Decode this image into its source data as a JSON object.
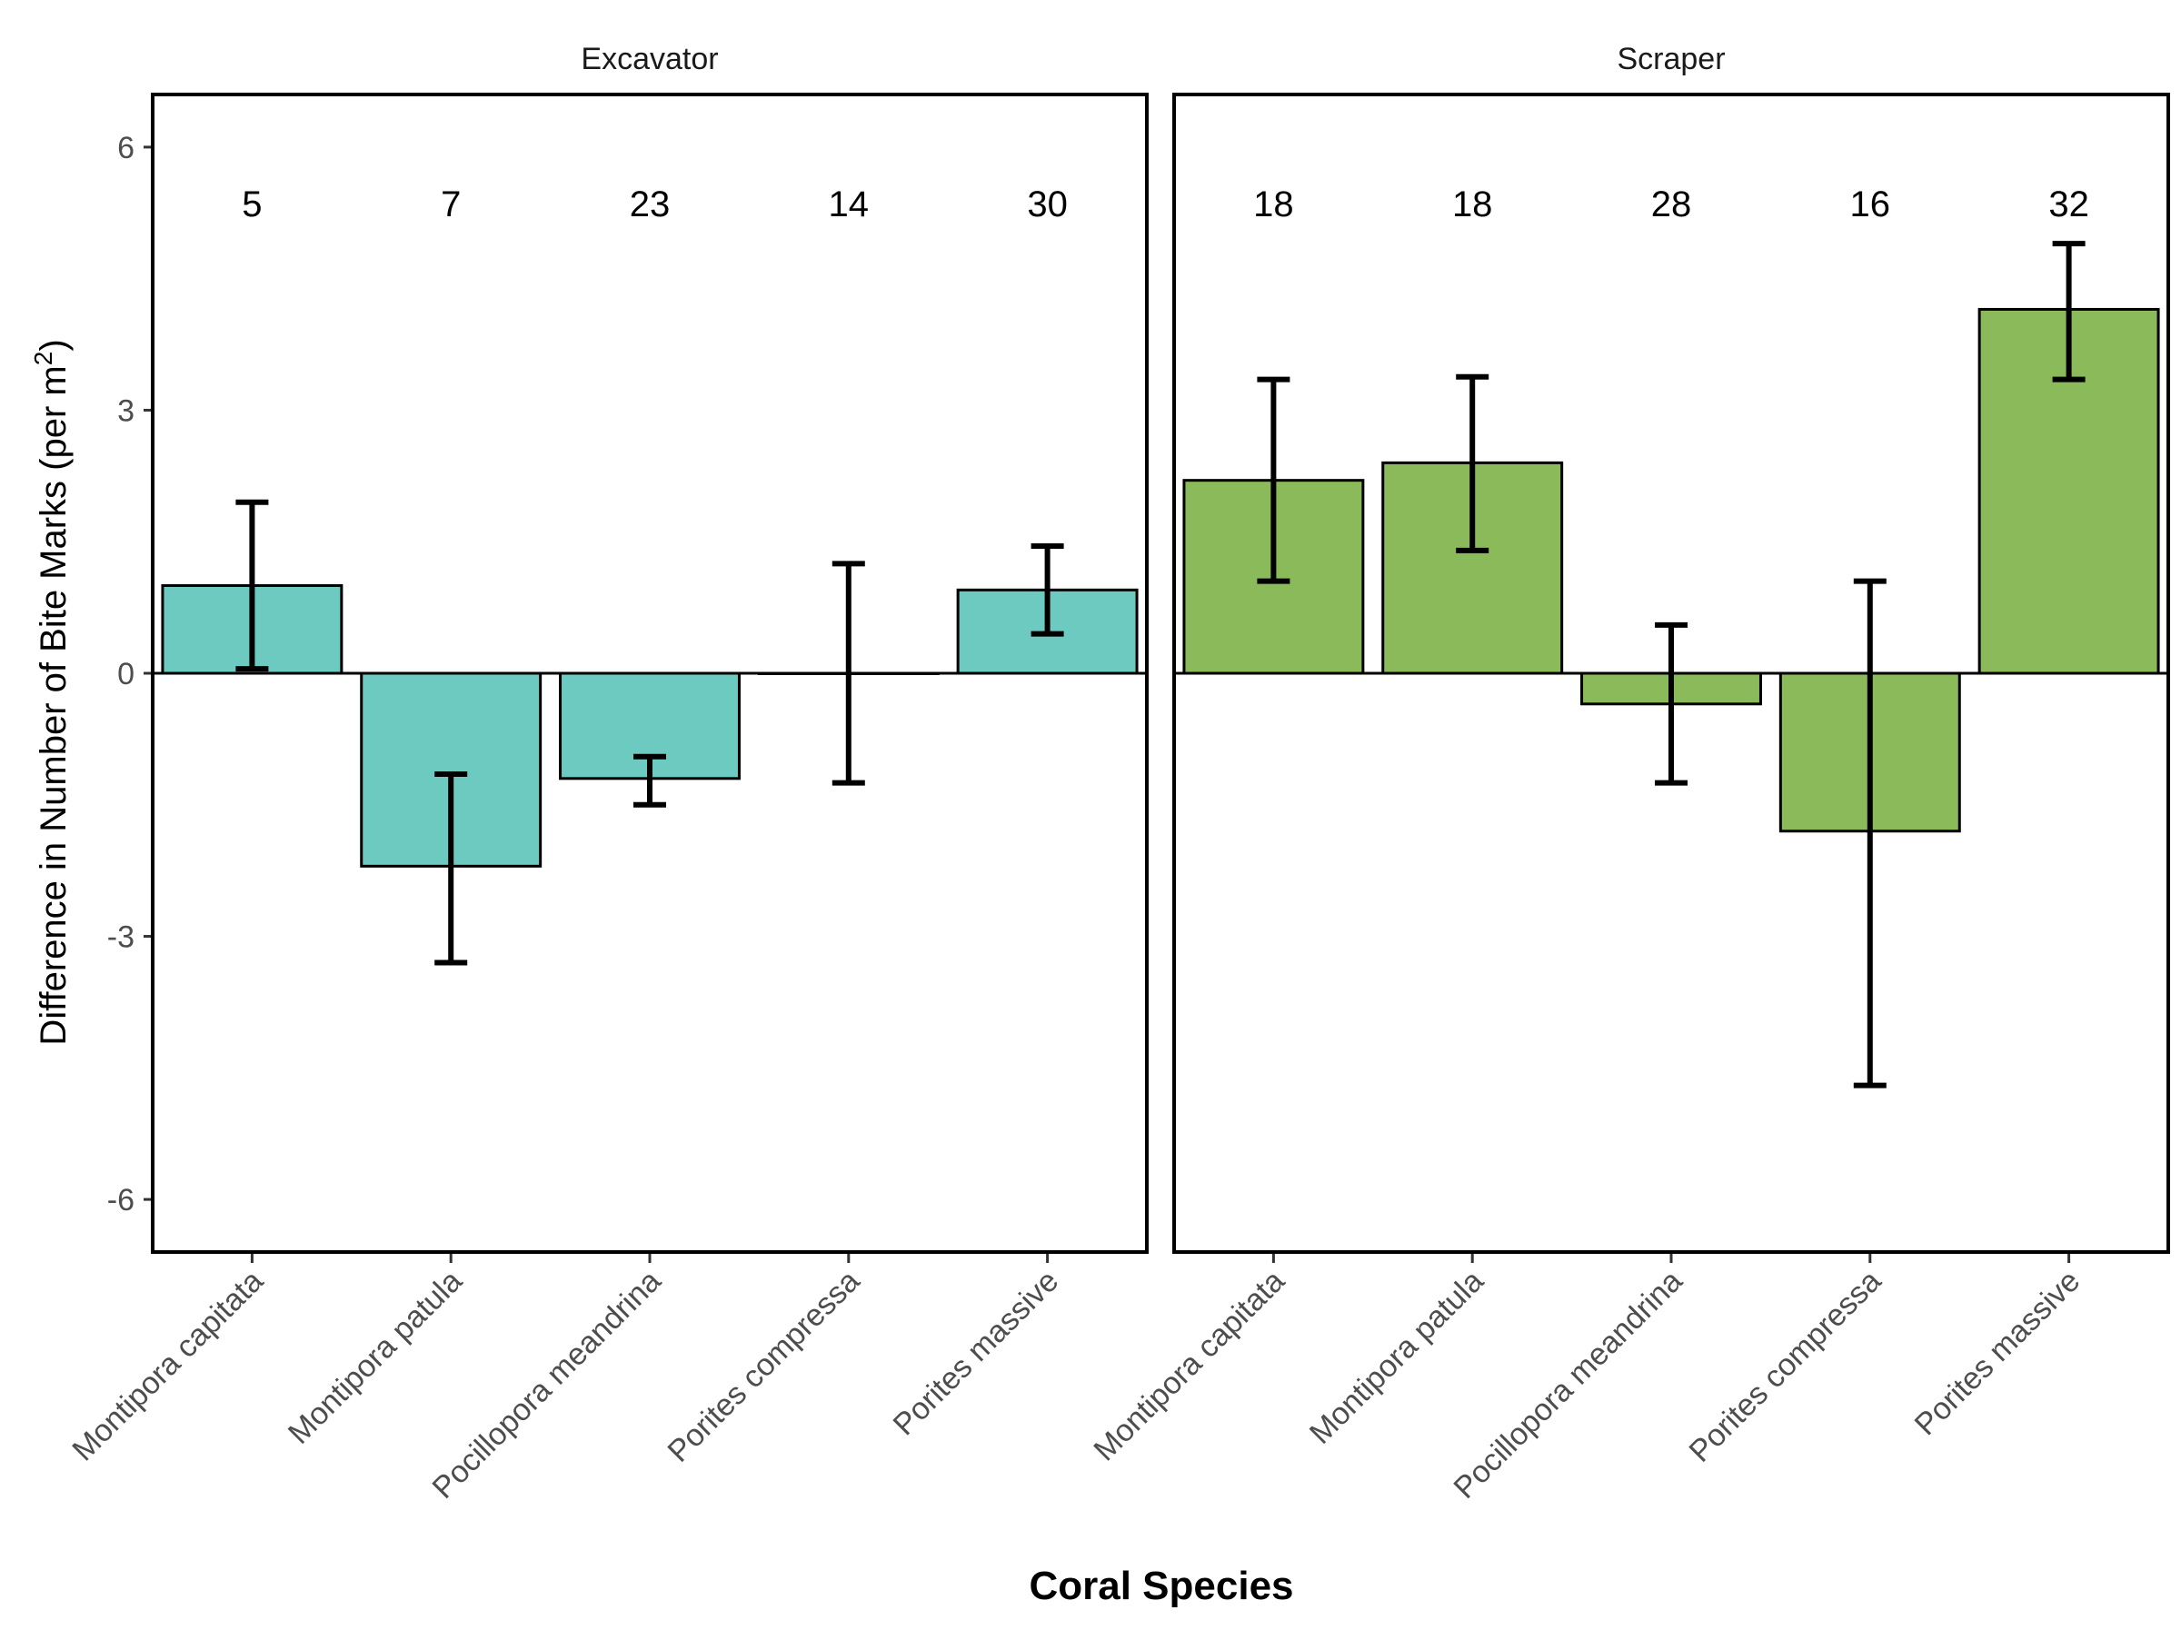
{
  "chart_data": {
    "type": "bar",
    "xlabel": "Coral Species",
    "ylabel_main": "Difference in Number of Bite Marks (per m",
    "ylabel_sup": "2",
    "ylabel_tail": ")",
    "ylim": [
      -6.6,
      6.6
    ],
    "yticks": [
      6,
      3,
      0,
      -3,
      -6
    ],
    "ytick_labels": [
      "6",
      "3",
      "0",
      "-3",
      "-6"
    ],
    "categories": [
      "Montipora capitata",
      "Montipora patula",
      "Pocillopora meandrina",
      "Porites compressa",
      "Porites massive"
    ],
    "panels": [
      {
        "name": "Excavator",
        "color": "#6CCAC1",
        "values": [
          1.0,
          -2.2,
          -1.2,
          0.0,
          0.95
        ],
        "error_low": [
          0.05,
          -3.3,
          -1.5,
          -1.25,
          0.45
        ],
        "error_high": [
          1.95,
          -1.15,
          -0.95,
          1.25,
          1.45
        ],
        "n_labels": [
          "5",
          "7",
          "23",
          "14",
          "30"
        ]
      },
      {
        "name": "Scraper",
        "color": "#8BBA5A",
        "values": [
          2.2,
          2.4,
          -0.35,
          -1.8,
          4.15
        ],
        "error_low": [
          1.05,
          1.4,
          -1.25,
          -4.7,
          3.35
        ],
        "error_high": [
          3.35,
          3.38,
          0.55,
          1.05,
          4.9
        ],
        "n_labels": [
          "18",
          "18",
          "28",
          "16",
          "32"
        ]
      }
    ]
  }
}
